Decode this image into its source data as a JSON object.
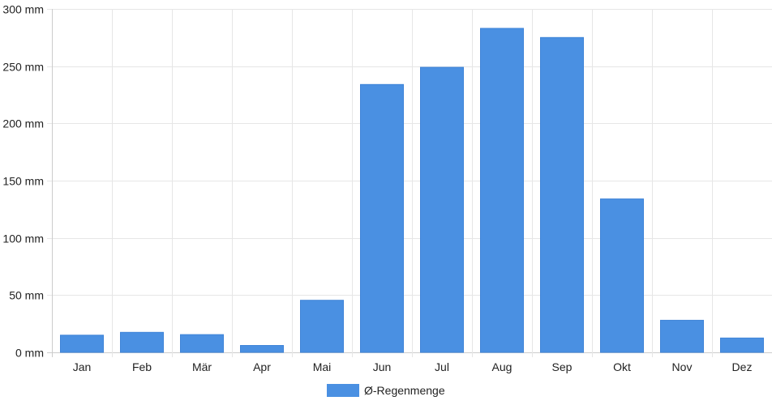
{
  "chart_data": {
    "type": "bar",
    "categories": [
      "Jan",
      "Feb",
      "Mär",
      "Apr",
      "Mai",
      "Jun",
      "Jul",
      "Aug",
      "Sep",
      "Okt",
      "Nov",
      "Dez"
    ],
    "series": [
      {
        "name": "Ø-Regenmenge",
        "values": [
          15,
          17.5,
          15.5,
          6,
          45.5,
          234,
          249,
          283,
          275,
          134,
          28,
          12.5
        ],
        "color": "#4a90e2"
      }
    ],
    "yticks": [
      "0 mm",
      "50 mm",
      "100 mm",
      "150 mm",
      "200 mm",
      "250 mm",
      "300 mm"
    ],
    "ytick_values": [
      0,
      50,
      100,
      150,
      200,
      250,
      300
    ],
    "ylim": [
      0,
      300
    ],
    "grid": true,
    "legend": "bottom-center",
    "grid_color": "#e6e6e6",
    "axis_color": "#cccccc"
  }
}
